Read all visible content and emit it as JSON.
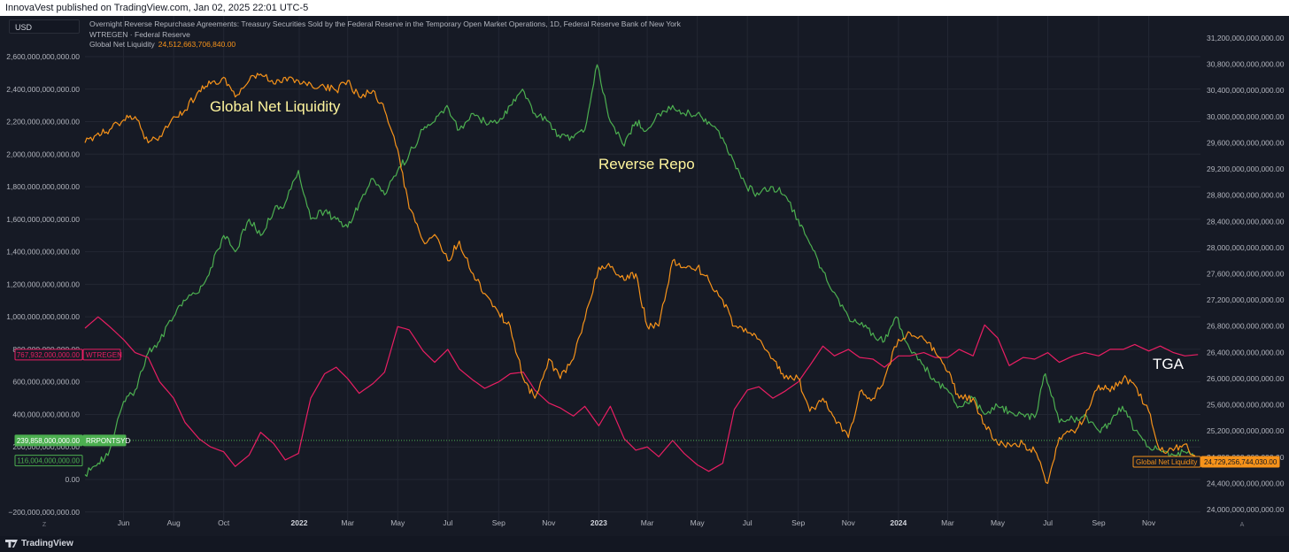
{
  "header": {
    "published_by": "InnovaVest published on TradingView.com, Jan 02, 2025 22:01 UTC-5"
  },
  "toolbar": {
    "currency": "USD"
  },
  "legend": {
    "line1": "Overnight Reverse Repurchase Agreements: Treasury Securities Sold by the Federal Reserve in the Temporary Open Market Operations, 1D, Federal Reserve Bank of New York",
    "line2": "WTREGEN · Federal Reserve",
    "line3_name": "Global Net Liquidity",
    "line3_value": "24,512,663,706,840.00"
  },
  "footer": {
    "brand": "TradingView",
    "left_scale_mark": "Z",
    "right_scale_mark": "A"
  },
  "annotations": {
    "global_net_liquidity": "Global Net Liquidity",
    "reverse_repo": "Reverse Repo",
    "tga": "TGA"
  },
  "colors": {
    "background": "#161a25",
    "grid": "#232733",
    "text": "#b2b5be",
    "rrp": "#4caf50",
    "tga": "#e91e63",
    "gnl": "#f7931a",
    "annotation": "#fff59d"
  },
  "chart_data": {
    "type": "line",
    "x_tick_labels": [
      "Jun",
      "Aug",
      "Oct",
      "2022",
      "Mar",
      "May",
      "Jul",
      "Sep",
      "Nov",
      "2023",
      "Mar",
      "May",
      "Jul",
      "Sep",
      "Nov",
      "2024",
      "Mar",
      "May",
      "Jul",
      "Sep",
      "Nov"
    ],
    "x_tick_bold": [
      "2022",
      "2023",
      "2024"
    ],
    "x_tick_dates": [
      "2021-06-01",
      "2021-08-01",
      "2021-10-01",
      "2022-01-01",
      "2022-03-01",
      "2022-05-01",
      "2022-07-01",
      "2022-09-01",
      "2022-11-01",
      "2023-01-01",
      "2023-03-01",
      "2023-05-01",
      "2023-07-01",
      "2023-09-01",
      "2023-11-01",
      "2024-01-01",
      "2024-03-01",
      "2024-05-01",
      "2024-07-01",
      "2024-09-01",
      "2024-11-01"
    ],
    "x_range": [
      "2021-04-15",
      "2025-01-03"
    ],
    "left_axis": {
      "range": [
        -250000000000,
        2850000000000
      ],
      "ticks": [
        -200000000000,
        0,
        200000000000,
        400000000000,
        600000000000,
        800000000000,
        1000000000000,
        1200000000000,
        1400000000000,
        1600000000000,
        1800000000000,
        2000000000000,
        2200000000000,
        2400000000000,
        2600000000000
      ],
      "tick_labels": [
        "−200,000,000,000.00",
        "0.00",
        "200,000,000,000.00",
        "400,000,000,000.00",
        "600,000,000,000.00",
        "800,000,000,000.00",
        "1,000,000,000,000.00",
        "1,200,000,000,000.00",
        "1,400,000,000,000.00",
        "1,600,000,000,000.00",
        "1,800,000,000,000.00",
        "2,000,000,000,000.00",
        "2,200,000,000,000.00",
        "2,400,000,000,000.00",
        "2,600,000,000,000.00"
      ]
    },
    "right_axis": {
      "range": [
        23875000000000,
        31375000000000
      ],
      "ticks": [
        24000000000000,
        24400000000000,
        24800000000000,
        25200000000000,
        25600000000000,
        26000000000000,
        26400000000000,
        26800000000000,
        27200000000000,
        27600000000000,
        28000000000000,
        28400000000000,
        28800000000000,
        29200000000000,
        29600000000000,
        30000000000000,
        30400000000000,
        30800000000000,
        31200000000000
      ],
      "tick_labels": [
        "24,000,000,000,000.00",
        "24,400,000,000,000.00",
        "24,800,000,000,000.00",
        "25,200,000,000,000.00",
        "25,600,000,000,000.00",
        "26,000,000,000,000.00",
        "26,400,000,000,000.00",
        "26,800,000,000,000.00",
        "27,200,000,000,000.00",
        "27,600,000,000,000.00",
        "28,000,000,000,000.00",
        "28,400,000,000,000.00",
        "28,800,000,000,000.00",
        "29,200,000,000,000.00",
        "29,600,000,000,000.00",
        "30,000,000,000,000.00",
        "30,400,000,000,000.00",
        "30,800,000,000,000.00",
        "31,200,000,000,000.00"
      ]
    },
    "series": [
      {
        "name": "RRPONTSYD",
        "axis": "left",
        "color": "#4caf50",
        "dates": [
          "2021-04-15",
          "2021-05-01",
          "2021-05-15",
          "2021-06-01",
          "2021-06-15",
          "2021-07-01",
          "2021-07-15",
          "2021-08-01",
          "2021-08-15",
          "2021-09-01",
          "2021-09-15",
          "2021-10-01",
          "2021-10-15",
          "2021-11-01",
          "2021-11-15",
          "2021-12-01",
          "2021-12-15",
          "2021-12-31",
          "2022-01-15",
          "2022-02-01",
          "2022-02-15",
          "2022-03-01",
          "2022-03-15",
          "2022-04-01",
          "2022-04-15",
          "2022-05-01",
          "2022-05-15",
          "2022-06-01",
          "2022-06-15",
          "2022-06-30",
          "2022-07-15",
          "2022-08-01",
          "2022-08-15",
          "2022-09-01",
          "2022-09-15",
          "2022-09-30",
          "2022-10-15",
          "2022-11-01",
          "2022-11-15",
          "2022-12-01",
          "2022-12-15",
          "2022-12-30",
          "2023-01-15",
          "2023-02-01",
          "2023-02-15",
          "2023-03-01",
          "2023-03-15",
          "2023-04-01",
          "2023-04-15",
          "2023-05-01",
          "2023-05-15",
          "2023-06-01",
          "2023-06-15",
          "2023-06-30",
          "2023-07-15",
          "2023-08-01",
          "2023-08-15",
          "2023-09-01",
          "2023-09-15",
          "2023-09-29",
          "2023-10-15",
          "2023-11-01",
          "2023-11-15",
          "2023-12-01",
          "2023-12-15",
          "2023-12-29",
          "2024-01-15",
          "2024-02-01",
          "2024-02-15",
          "2024-03-01",
          "2024-03-15",
          "2024-04-01",
          "2024-04-15",
          "2024-05-01",
          "2024-05-15",
          "2024-06-01",
          "2024-06-15",
          "2024-06-28",
          "2024-07-15",
          "2024-08-01",
          "2024-08-15",
          "2024-09-01",
          "2024-09-15",
          "2024-09-30",
          "2024-10-15",
          "2024-11-01",
          "2024-11-15",
          "2024-12-01",
          "2024-12-15",
          "2024-12-31"
        ],
        "values": [
          30000000000,
          100000000000,
          180000000000,
          480000000000,
          550000000000,
          780000000000,
          850000000000,
          1000000000000,
          1100000000000,
          1150000000000,
          1300000000000,
          1500000000000,
          1400000000000,
          1600000000000,
          1500000000000,
          1650000000000,
          1700000000000,
          1900000000000,
          1600000000000,
          1650000000000,
          1600000000000,
          1550000000000,
          1700000000000,
          1850000000000,
          1750000000000,
          1900000000000,
          2000000000000,
          2150000000000,
          2200000000000,
          2300000000000,
          2150000000000,
          2250000000000,
          2200000000000,
          2200000000000,
          2300000000000,
          2400000000000,
          2250000000000,
          2200000000000,
          2100000000000,
          2100000000000,
          2150000000000,
          2550000000000,
          2200000000000,
          2050000000000,
          2200000000000,
          2150000000000,
          2250000000000,
          2300000000000,
          2250000000000,
          2250000000000,
          2200000000000,
          2100000000000,
          1950000000000,
          1800000000000,
          1750000000000,
          1800000000000,
          1750000000000,
          1600000000000,
          1450000000000,
          1300000000000,
          1150000000000,
          1000000000000,
          950000000000,
          900000000000,
          850000000000,
          1000000000000,
          800000000000,
          700000000000,
          600000000000,
          550000000000,
          450000000000,
          500000000000,
          400000000000,
          450000000000,
          420000000000,
          400000000000,
          380000000000,
          650000000000,
          350000000000,
          370000000000,
          400000000000,
          300000000000,
          340000000000,
          450000000000,
          300000000000,
          200000000000,
          180000000000,
          150000000000,
          170000000000,
          116004000000
        ],
        "last_value_label": "116,004,000,000.00"
      },
      {
        "name": "WTREGEN",
        "axis": "left",
        "color": "#e91e63",
        "dates": [
          "2021-04-15",
          "2021-05-01",
          "2021-05-15",
          "2021-06-01",
          "2021-06-15",
          "2021-07-01",
          "2021-07-15",
          "2021-08-01",
          "2021-08-15",
          "2021-09-01",
          "2021-09-15",
          "2021-10-01",
          "2021-10-15",
          "2021-11-01",
          "2021-11-15",
          "2021-12-01",
          "2021-12-15",
          "2021-12-31",
          "2022-01-15",
          "2022-02-01",
          "2022-02-15",
          "2022-03-01",
          "2022-03-15",
          "2022-04-01",
          "2022-04-15",
          "2022-05-01",
          "2022-05-15",
          "2022-06-01",
          "2022-06-15",
          "2022-07-01",
          "2022-07-15",
          "2022-08-01",
          "2022-08-15",
          "2022-09-01",
          "2022-09-15",
          "2022-10-01",
          "2022-10-15",
          "2022-11-01",
          "2022-11-15",
          "2022-12-01",
          "2022-12-15",
          "2023-01-01",
          "2023-01-15",
          "2023-02-01",
          "2023-02-15",
          "2023-03-01",
          "2023-03-15",
          "2023-04-01",
          "2023-04-15",
          "2023-05-01",
          "2023-05-15",
          "2023-06-01",
          "2023-06-15",
          "2023-07-01",
          "2023-07-15",
          "2023-08-01",
          "2023-08-15",
          "2023-09-01",
          "2023-09-15",
          "2023-10-01",
          "2023-10-15",
          "2023-11-01",
          "2023-11-15",
          "2023-12-01",
          "2023-12-15",
          "2024-01-01",
          "2024-01-15",
          "2024-02-01",
          "2024-02-15",
          "2024-03-01",
          "2024-03-15",
          "2024-04-01",
          "2024-04-15",
          "2024-05-01",
          "2024-05-15",
          "2024-06-01",
          "2024-06-15",
          "2024-07-01",
          "2024-07-15",
          "2024-08-01",
          "2024-08-15",
          "2024-09-01",
          "2024-09-15",
          "2024-10-01",
          "2024-10-15",
          "2024-11-01",
          "2024-11-15",
          "2024-12-01",
          "2024-12-15",
          "2024-12-31"
        ],
        "values": [
          930000000000,
          1000000000000,
          940000000000,
          860000000000,
          780000000000,
          750000000000,
          600000000000,
          500000000000,
          350000000000,
          250000000000,
          200000000000,
          170000000000,
          80000000000,
          150000000000,
          290000000000,
          220000000000,
          120000000000,
          160000000000,
          500000000000,
          650000000000,
          690000000000,
          620000000000,
          530000000000,
          590000000000,
          660000000000,
          940000000000,
          920000000000,
          790000000000,
          720000000000,
          800000000000,
          680000000000,
          610000000000,
          560000000000,
          600000000000,
          650000000000,
          660000000000,
          550000000000,
          470000000000,
          440000000000,
          390000000000,
          450000000000,
          330000000000,
          450000000000,
          250000000000,
          180000000000,
          200000000000,
          140000000000,
          240000000000,
          160000000000,
          90000000000,
          50000000000,
          100000000000,
          430000000000,
          550000000000,
          570000000000,
          500000000000,
          540000000000,
          600000000000,
          700000000000,
          820000000000,
          760000000000,
          800000000000,
          750000000000,
          740000000000,
          690000000000,
          760000000000,
          760000000000,
          780000000000,
          750000000000,
          750000000000,
          800000000000,
          760000000000,
          950000000000,
          870000000000,
          700000000000,
          750000000000,
          740000000000,
          780000000000,
          720000000000,
          760000000000,
          780000000000,
          760000000000,
          800000000000,
          800000000000,
          830000000000,
          790000000000,
          820000000000,
          780000000000,
          760000000000,
          767932000000
        ],
        "last_value_label": "767,932,000,000.00"
      },
      {
        "name": "Global Net Liquidity",
        "axis": "right",
        "color": "#f7931a",
        "dates": [
          "2021-04-15",
          "2021-05-01",
          "2021-05-15",
          "2021-06-01",
          "2021-06-15",
          "2021-07-01",
          "2021-07-15",
          "2021-08-01",
          "2021-08-15",
          "2021-09-01",
          "2021-09-15",
          "2021-10-01",
          "2021-10-15",
          "2021-11-01",
          "2021-11-15",
          "2021-12-01",
          "2021-12-15",
          "2021-12-31",
          "2022-01-15",
          "2022-02-01",
          "2022-02-15",
          "2022-03-01",
          "2022-03-15",
          "2022-04-01",
          "2022-04-15",
          "2022-05-01",
          "2022-05-15",
          "2022-06-01",
          "2022-06-15",
          "2022-07-01",
          "2022-07-15",
          "2022-08-01",
          "2022-08-15",
          "2022-09-01",
          "2022-09-15",
          "2022-10-01",
          "2022-10-15",
          "2022-11-01",
          "2022-11-15",
          "2022-12-01",
          "2022-12-15",
          "2023-01-01",
          "2023-01-15",
          "2023-02-01",
          "2023-02-15",
          "2023-03-01",
          "2023-03-15",
          "2023-04-01",
          "2023-04-15",
          "2023-05-01",
          "2023-05-15",
          "2023-06-01",
          "2023-06-15",
          "2023-07-01",
          "2023-07-15",
          "2023-08-01",
          "2023-08-15",
          "2023-09-01",
          "2023-09-15",
          "2023-10-01",
          "2023-10-15",
          "2023-11-01",
          "2023-11-15",
          "2023-12-01",
          "2023-12-15",
          "2024-01-01",
          "2024-01-15",
          "2024-02-01",
          "2024-02-15",
          "2024-03-01",
          "2024-03-15",
          "2024-04-01",
          "2024-04-15",
          "2024-05-01",
          "2024-05-15",
          "2024-06-01",
          "2024-06-15",
          "2024-07-01",
          "2024-07-15",
          "2024-08-01",
          "2024-08-15",
          "2024-09-01",
          "2024-09-15",
          "2024-10-01",
          "2024-10-15",
          "2024-11-01",
          "2024-11-15",
          "2024-12-01",
          "2024-12-15",
          "2024-12-31"
        ],
        "values": [
          29600000000000,
          29750000000000,
          29800000000000,
          29950000000000,
          30000000000000,
          29600000000000,
          29700000000000,
          30000000000000,
          30100000000000,
          30400000000000,
          30500000000000,
          30600000000000,
          30300000000000,
          30550000000000,
          30650000000000,
          30500000000000,
          30600000000000,
          30550000000000,
          30500000000000,
          30450000000000,
          30400000000000,
          30550000000000,
          30300000000000,
          30400000000000,
          30100000000000,
          29500000000000,
          28600000000000,
          28100000000000,
          28200000000000,
          27800000000000,
          28100000000000,
          27600000000000,
          27300000000000,
          27000000000000,
          26800000000000,
          26000000000000,
          25700000000000,
          26300000000000,
          26000000000000,
          26300000000000,
          26900000000000,
          27700000000000,
          27700000000000,
          27500000000000,
          27600000000000,
          26800000000000,
          26800000000000,
          27800000000000,
          27700000000000,
          27700000000000,
          27500000000000,
          27200000000000,
          26800000000000,
          26700000000000,
          26600000000000,
          26300000000000,
          26000000000000,
          26000000000000,
          25500000000000,
          25700000000000,
          25400000000000,
          25100000000000,
          25800000000000,
          25700000000000,
          26000000000000,
          26600000000000,
          26700000000000,
          26600000000000,
          26400000000000,
          26100000000000,
          25700000000000,
          25700000000000,
          25300000000000,
          25000000000000,
          25000000000000,
          25000000000000,
          24900000000000,
          24400000000000,
          25100000000000,
          25200000000000,
          25400000000000,
          25900000000000,
          25800000000000,
          26000000000000,
          25900000000000,
          25500000000000,
          24900000000000,
          24900000000000,
          25000000000000,
          24729256744030
        ],
        "last_value_label": "24,729,256,744,030.00"
      }
    ],
    "reference_line": {
      "name": "RRPONTSYD",
      "value": 239858000000,
      "label": "239,858,000,000.00"
    },
    "series_labels": {
      "rrp_tag": "RRPONTSYD",
      "tga_tag": "WTREGEN",
      "gnl_tag": "Global Net Liquidity"
    },
    "annotations": [
      "Global Net Liquidity",
      "Reverse Repo",
      "TGA"
    ],
    "grid": true
  }
}
